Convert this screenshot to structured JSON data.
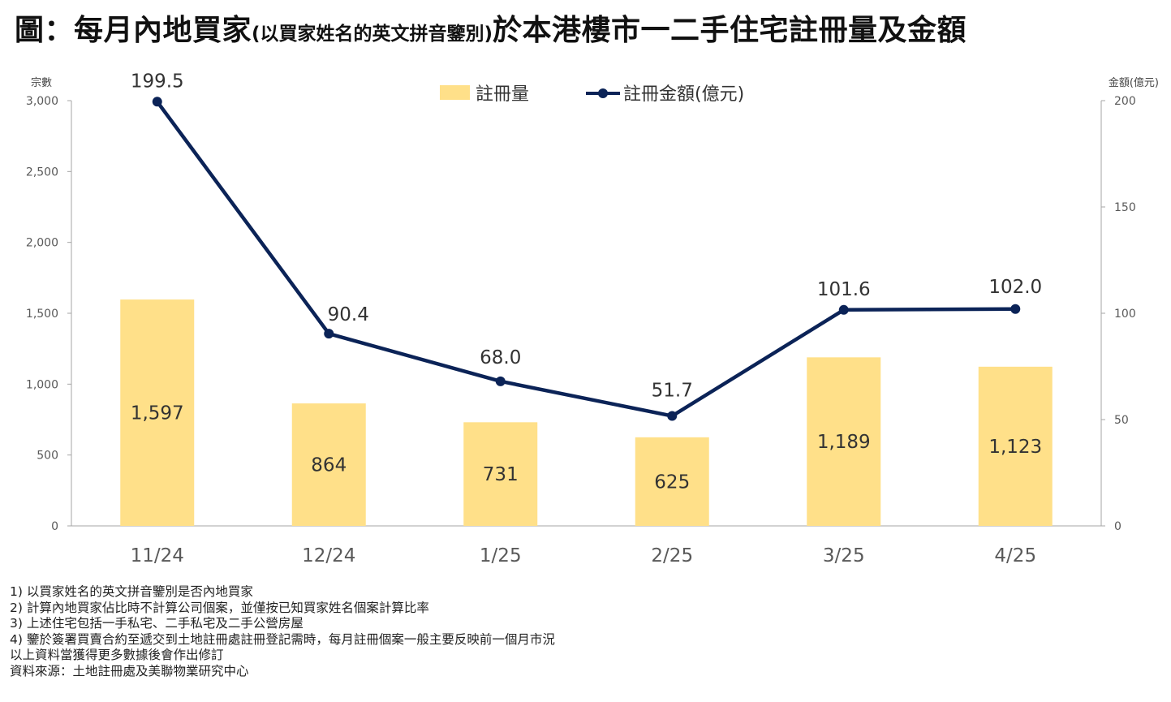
{
  "title": {
    "part1": "圖：每月內地買家",
    "part2": "(以買家姓名的英文拼音鑒別)",
    "part3": "於本港樓市一二手住宅註冊量及金額"
  },
  "chart_data": {
    "type": "bar+line",
    "categories": [
      "11/24",
      "12/24",
      "1/25",
      "2/25",
      "3/25",
      "4/25"
    ],
    "series": [
      {
        "name": "註冊量",
        "type": "bar",
        "axis": "left",
        "values": [
          1597,
          864,
          731,
          625,
          1189,
          1123
        ],
        "labels": [
          "1,597",
          "864",
          "731",
          "625",
          "1,189",
          "1,123"
        ]
      },
      {
        "name": "註冊金額(億元)",
        "type": "line",
        "axis": "right",
        "values": [
          199.5,
          90.4,
          68.0,
          51.7,
          101.6,
          102.0
        ],
        "labels": [
          "199.5",
          "90.4",
          "68.0",
          "51.7",
          "101.6",
          "102.0"
        ]
      }
    ],
    "y_left": {
      "label": "宗數",
      "range": [
        0,
        3000
      ],
      "ticks": [
        0,
        500,
        1000,
        1500,
        2000,
        2500,
        3000
      ],
      "tick_labels": [
        "0",
        "500",
        "1,000",
        "1,500",
        "2,000",
        "2,500",
        "3,000"
      ]
    },
    "y_right": {
      "label": "金額(億元)",
      "range": [
        0,
        200
      ],
      "ticks": [
        0,
        50,
        100,
        150,
        200
      ],
      "tick_labels": [
        "0",
        "50",
        "100",
        "150",
        "200"
      ]
    },
    "legend_position": "top-center",
    "colors": {
      "bar": "#FFE089",
      "line": "#0B2357",
      "axis": "#A6A6A6",
      "tick_text": "#595959"
    }
  },
  "notes": [
    "1) 以買家姓名的英文拼音鑒別是否內地買家",
    "2) 計算內地買家佔比時不計算公司個案，並僅按已知買家姓名個案計算比率",
    "3) 上述住宅包括一手私宅、二手私宅及二手公營房屋",
    "4) 鑒於簽署買賣合約至遞交到土地註冊處註冊登記需時，每月註冊個案一般主要反映前一個月市況",
    "以上資料當獲得更多數據後會作出修訂",
    "資料來源：土地註冊處及美聯物業研究中心"
  ]
}
